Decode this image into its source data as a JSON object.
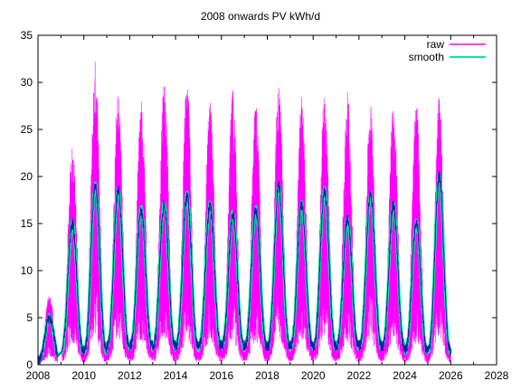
{
  "chart_data": {
    "type": "line",
    "title": "2008 onwards PV kWh/d",
    "xlabel": "",
    "ylabel": "",
    "xlim": [
      2008,
      2028
    ],
    "ylim": [
      0,
      35
    ],
    "x_ticks": [
      "2008",
      "2010",
      "2012",
      "2014",
      "2016",
      "2018",
      "2020",
      "2022",
      "2024",
      "2026",
      "2028"
    ],
    "y_ticks": [
      "0",
      "5",
      "10",
      "15",
      "20",
      "25",
      "30",
      "35"
    ],
    "grid": false,
    "legend_position": "top-right",
    "series": [
      {
        "name": "raw",
        "color": "#ff00ff",
        "style": "dense daily oscillation",
        "peaks": [
          {
            "year": 2008.5,
            "max": 7.5,
            "min": 0.5
          },
          {
            "year": 2009.5,
            "max": 23.5,
            "min": 2.0
          },
          {
            "year": 2010.5,
            "max": 32.5,
            "min": 1.0
          },
          {
            "year": 2011.5,
            "max": 29.0,
            "min": 1.0
          },
          {
            "year": 2012.5,
            "max": 28.5,
            "min": 1.0
          },
          {
            "year": 2013.5,
            "max": 31.0,
            "min": 1.0
          },
          {
            "year": 2014.5,
            "max": 31.0,
            "min": 1.0
          },
          {
            "year": 2015.5,
            "max": 28.0,
            "min": 1.0
          },
          {
            "year": 2016.5,
            "max": 29.5,
            "min": 1.0
          },
          {
            "year": 2017.5,
            "max": 28.0,
            "min": 1.0
          },
          {
            "year": 2018.5,
            "max": 30.0,
            "min": 1.0
          },
          {
            "year": 2019.5,
            "max": 28.5,
            "min": 1.0
          },
          {
            "year": 2020.5,
            "max": 29.0,
            "min": 1.0
          },
          {
            "year": 2021.5,
            "max": 29.0,
            "min": 1.0
          },
          {
            "year": 2022.5,
            "max": 28.0,
            "min": 1.0
          },
          {
            "year": 2023.5,
            "max": 28.0,
            "min": 1.0
          },
          {
            "year": 2024.5,
            "max": 28.0,
            "min": 1.0
          },
          {
            "year": 2025.5,
            "max": 28.5,
            "min": 1.0
          }
        ]
      },
      {
        "name": "smooth",
        "color": "#00ee99",
        "style": "smoothed seasonal curve",
        "peaks": [
          {
            "year": 2008.5,
            "max": 5.0,
            "min": 0.5
          },
          {
            "year": 2009.5,
            "max": 15.0,
            "min": 1.5
          },
          {
            "year": 2010.5,
            "max": 19.0,
            "min": 1.5
          },
          {
            "year": 2011.5,
            "max": 18.5,
            "min": 2.0
          },
          {
            "year": 2012.5,
            "max": 16.5,
            "min": 2.0
          },
          {
            "year": 2013.5,
            "max": 17.0,
            "min": 2.0
          },
          {
            "year": 2014.5,
            "max": 18.0,
            "min": 2.0
          },
          {
            "year": 2015.5,
            "max": 17.0,
            "min": 2.0
          },
          {
            "year": 2016.5,
            "max": 16.0,
            "min": 2.0
          },
          {
            "year": 2017.5,
            "max": 16.5,
            "min": 2.0
          },
          {
            "year": 2018.5,
            "max": 19.0,
            "min": 2.0
          },
          {
            "year": 2019.5,
            "max": 17.0,
            "min": 2.0
          },
          {
            "year": 2020.5,
            "max": 18.5,
            "min": 2.0
          },
          {
            "year": 2021.5,
            "max": 15.5,
            "min": 2.0
          },
          {
            "year": 2022.5,
            "max": 18.0,
            "min": 2.0
          },
          {
            "year": 2023.5,
            "max": 17.0,
            "min": 2.0
          },
          {
            "year": 2024.5,
            "max": 15.0,
            "min": 1.5
          },
          {
            "year": 2025.5,
            "max": 20.0,
            "min": 1.5
          }
        ]
      }
    ]
  }
}
